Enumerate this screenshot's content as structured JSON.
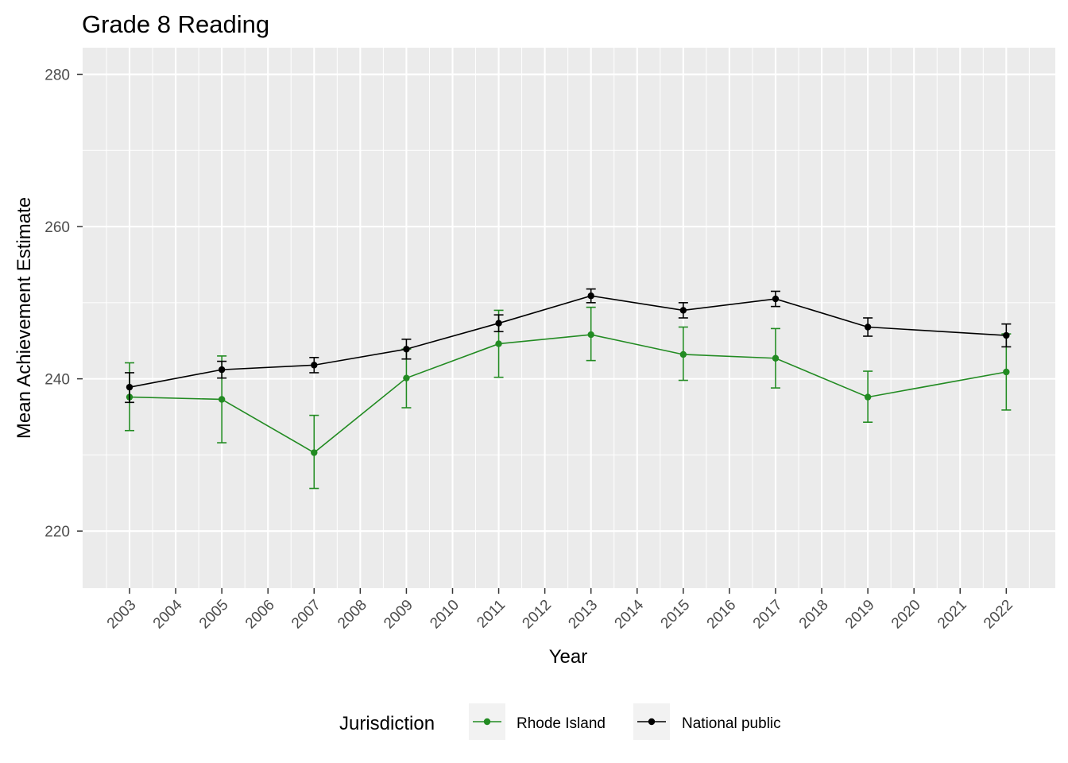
{
  "chart_data": {
    "type": "line",
    "title": "Grade 8 Reading",
    "xlabel": "Year",
    "ylabel": "Mean Achievement Estimate",
    "x_ticks": [
      "2003",
      "2004",
      "2005",
      "2006",
      "2007",
      "2008",
      "2009",
      "2010",
      "2011",
      "2012",
      "2013",
      "2014",
      "2015",
      "2016",
      "2017",
      "2018",
      "2019",
      "2020",
      "2021",
      "2022"
    ],
    "y_ticks": [
      220,
      240,
      260,
      280
    ],
    "ylim": [
      212.5,
      283.5
    ],
    "grid": true,
    "legend": {
      "title": "Jurisdiction",
      "placement": "bottom",
      "items": [
        "Rhode Island",
        "National public"
      ]
    },
    "series": [
      {
        "name": "Rhode Island",
        "color": "#228b22",
        "points": [
          {
            "x": 2003,
            "y": 237.6,
            "lo": 233.2,
            "hi": 242.1
          },
          {
            "x": 2005,
            "y": 237.3,
            "lo": 231.6,
            "hi": 243.0
          },
          {
            "x": 2007,
            "y": 230.3,
            "lo": 225.6,
            "hi": 235.2
          },
          {
            "x": 2009,
            "y": 240.1,
            "lo": 236.2,
            "hi": 243.9
          },
          {
            "x": 2011,
            "y": 244.6,
            "lo": 240.2,
            "hi": 249.0
          },
          {
            "x": 2013,
            "y": 245.8,
            "lo": 242.4,
            "hi": 249.4
          },
          {
            "x": 2015,
            "y": 243.2,
            "lo": 239.8,
            "hi": 246.8
          },
          {
            "x": 2017,
            "y": 242.7,
            "lo": 238.8,
            "hi": 246.6
          },
          {
            "x": 2019,
            "y": 237.6,
            "lo": 234.3,
            "hi": 241.0
          },
          {
            "x": 2022,
            "y": 240.9,
            "lo": 235.9,
            "hi": 245.9
          }
        ]
      },
      {
        "name": "National public",
        "color": "#000000",
        "points": [
          {
            "x": 2003,
            "y": 238.9,
            "lo": 236.9,
            "hi": 240.8
          },
          {
            "x": 2005,
            "y": 241.2,
            "lo": 240.1,
            "hi": 242.3
          },
          {
            "x": 2007,
            "y": 241.8,
            "lo": 240.8,
            "hi": 242.8
          },
          {
            "x": 2009,
            "y": 243.9,
            "lo": 242.6,
            "hi": 245.2
          },
          {
            "x": 2011,
            "y": 247.3,
            "lo": 246.2,
            "hi": 248.4
          },
          {
            "x": 2013,
            "y": 250.9,
            "lo": 250.0,
            "hi": 251.8
          },
          {
            "x": 2015,
            "y": 249.0,
            "lo": 248.0,
            "hi": 250.0
          },
          {
            "x": 2017,
            "y": 250.5,
            "lo": 249.5,
            "hi": 251.5
          },
          {
            "x": 2019,
            "y": 246.8,
            "lo": 245.6,
            "hi": 248.0
          },
          {
            "x": 2022,
            "y": 245.7,
            "lo": 244.2,
            "hi": 247.2
          }
        ]
      }
    ]
  }
}
